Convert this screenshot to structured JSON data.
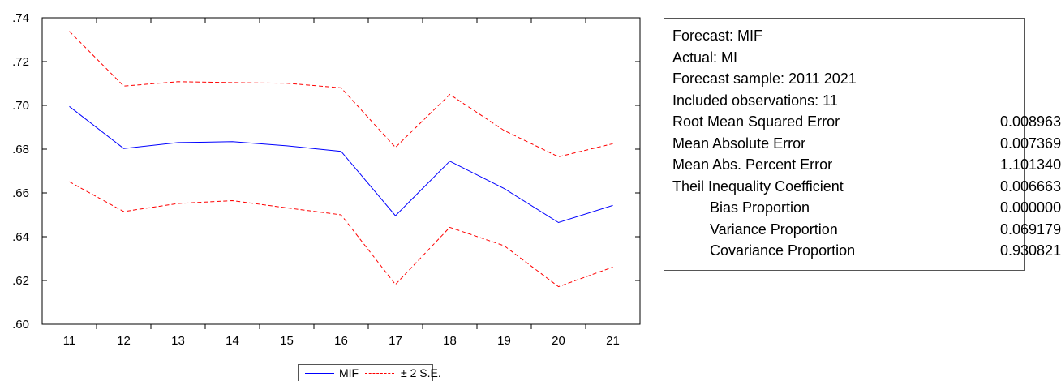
{
  "chart_data": {
    "type": "line",
    "title": "",
    "xlabel": "",
    "ylabel": "",
    "categories": [
      "11",
      "12",
      "13",
      "14",
      "15",
      "16",
      "17",
      "18",
      "19",
      "20",
      "21"
    ],
    "y_ticks": [
      ".60",
      ".62",
      ".64",
      ".66",
      ".68",
      ".70",
      ".72",
      ".74"
    ],
    "ylim": [
      0.6,
      0.74
    ],
    "grid": false,
    "legend_position": "bottom",
    "series": [
      {
        "name": "MIF",
        "color": "#0000ff",
        "style": "solid",
        "values": [
          0.6995,
          0.6803,
          0.683,
          0.6834,
          0.6815,
          0.679,
          0.6496,
          0.6745,
          0.662,
          0.6465,
          0.6543
        ]
      },
      {
        "name": "± 2 S.E.",
        "color": "#ff0000",
        "style": "dashed",
        "values": [
          0.7338,
          0.7088,
          0.7108,
          0.7104,
          0.7101,
          0.708,
          0.6808,
          0.705,
          0.6885,
          0.6765,
          0.6825
        ]
      },
      {
        "name": "",
        "color": "#ff0000",
        "style": "dashed",
        "values": [
          0.6651,
          0.6515,
          0.6552,
          0.6565,
          0.6532,
          0.65,
          0.6182,
          0.6443,
          0.6359,
          0.6172,
          0.6261
        ]
      }
    ]
  },
  "stats": {
    "rows": [
      {
        "label": "Forecast: MIF",
        "value": "",
        "indent": false
      },
      {
        "label": "Actual: MI",
        "value": "",
        "indent": false
      },
      {
        "label": "Forecast sample: 2011 2021",
        "value": "",
        "indent": false
      },
      {
        "label": "Included observations: 11",
        "value": "",
        "indent": false
      },
      {
        "label": "Root Mean Squared Error",
        "value": "0.008963",
        "indent": false
      },
      {
        "label": "Mean Absolute Error",
        "value": "0.007369",
        "indent": false
      },
      {
        "label": "Mean Abs. Percent Error",
        "value": "1.101340",
        "indent": false
      },
      {
        "label": "Theil Inequality Coefficient",
        "value": "0.006663",
        "indent": false
      },
      {
        "label": "Bias Proportion",
        "value": "0.000000",
        "indent": true
      },
      {
        "label": "Variance Proportion",
        "value": "0.069179",
        "indent": true
      },
      {
        "label": "Covariance Proportion",
        "value": "0.930821",
        "indent": true
      }
    ]
  },
  "legend": {
    "items": [
      {
        "label": "MIF",
        "color": "#0000ff",
        "style": "solid"
      },
      {
        "label": "± 2 S.E.",
        "color": "#ff0000",
        "style": "dashed"
      }
    ]
  }
}
